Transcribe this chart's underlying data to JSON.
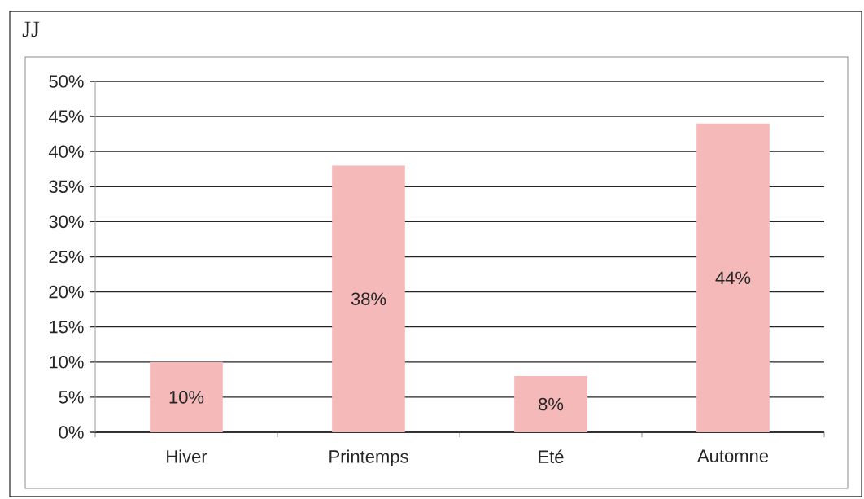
{
  "chart_data": {
    "type": "bar",
    "title": "JJ",
    "categories": [
      "Hiver",
      "Printemps",
      "Eté",
      "Automne"
    ],
    "values": [
      10,
      38,
      8,
      44
    ],
    "color": "#f4b9b8",
    "value_labels": [
      "10%",
      "38%",
      "8%",
      "44%"
    ],
    "ylim": [
      0,
      50
    ],
    "yticks": [
      {
        "value": 0,
        "label": "0%"
      },
      {
        "value": 5,
        "label": "5%"
      },
      {
        "value": 10,
        "label": "10%"
      },
      {
        "value": 15,
        "label": "15%"
      },
      {
        "value": 20,
        "label": "20%"
      },
      {
        "value": 25,
        "label": "25%"
      },
      {
        "value": 30,
        "label": "30%"
      },
      {
        "value": 35,
        "label": "35%"
      },
      {
        "value": 40,
        "label": "40%"
      },
      {
        "value": 45,
        "label": "45%"
      },
      {
        "value": 50,
        "label": "50%"
      }
    ],
    "grid": "y"
  }
}
